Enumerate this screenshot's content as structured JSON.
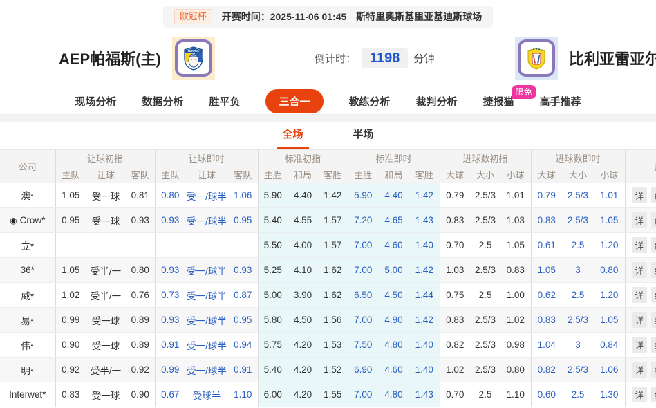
{
  "topbar": {
    "league_badge": "欧冠杯",
    "kickoff_label": "开赛时间：",
    "kickoff_time": "2025-11-06 01:45",
    "venue": "斯特里奥斯基里亚基迪斯球场"
  },
  "header": {
    "home_team": "AEP帕福斯(主)",
    "home_logo_text": "ΠΑΦΟΣ",
    "away_team": "比利亚雷亚尔",
    "countdown_label": "倒计时：",
    "countdown_value": "1198",
    "countdown_unit": "分钟"
  },
  "nav": {
    "tabs": [
      {
        "label": "现场分析",
        "active": false
      },
      {
        "label": "数据分析",
        "active": false
      },
      {
        "label": "胜平负",
        "active": false
      },
      {
        "label": "三合一",
        "active": true
      },
      {
        "label": "教练分析",
        "active": false
      },
      {
        "label": "裁判分析",
        "active": false
      },
      {
        "label": "捷报猫",
        "active": false,
        "badge": "限免"
      },
      {
        "label": "高手推荐",
        "active": false
      }
    ]
  },
  "subtabs": [
    {
      "label": "全场",
      "active": true
    },
    {
      "label": "半场",
      "active": false
    }
  ],
  "icons": {
    "bullseye": "◉"
  },
  "colors": {
    "accent_orange": "#e8430f",
    "odds_blue": "#2a5fc2",
    "cyan_bg": "#e9f7f8",
    "badge_pink": "#f135a0"
  },
  "table": {
    "col_company": "公司",
    "groups": [
      {
        "label": "让球初指",
        "cols": [
          "主队",
          "让球",
          "客队"
        ]
      },
      {
        "label": "让球即时",
        "cols": [
          "主队",
          "让球",
          "客队"
        ]
      },
      {
        "label": "标准初指",
        "cols": [
          "主胜",
          "和局",
          "客胜"
        ]
      },
      {
        "label": "标准即时",
        "cols": [
          "主胜",
          "和局",
          "客胜"
        ]
      },
      {
        "label": "进球数初指",
        "cols": [
          "大球",
          "大小",
          "小球"
        ]
      },
      {
        "label": "进球数即时",
        "cols": [
          "大球",
          "大小",
          "小球"
        ]
      }
    ],
    "last_group_label": "历史",
    "action_detail": "详",
    "action_stats": "统",
    "rows": [
      {
        "company": "澳*",
        "has_icon": false,
        "hi": [
          "1.05",
          "受一球",
          "0.81"
        ],
        "hl": [
          "0.80",
          "受一/球半",
          "1.06"
        ],
        "si": [
          "5.90",
          "4.40",
          "1.42"
        ],
        "sl": [
          "5.90",
          "4.40",
          "1.42"
        ],
        "gi": [
          "0.79",
          "2.5/3",
          "1.01"
        ],
        "gl": [
          "0.79",
          "2.5/3",
          "1.01"
        ]
      },
      {
        "company": "Crow*",
        "has_icon": true,
        "hi": [
          "0.95",
          "受一球",
          "0.93"
        ],
        "hl": [
          "0.93",
          "受一/球半",
          "0.95"
        ],
        "si": [
          "5.40",
          "4.55",
          "1.57"
        ],
        "sl": [
          "7.20",
          "4.65",
          "1.43"
        ],
        "gi": [
          "0.83",
          "2.5/3",
          "1.03"
        ],
        "gl": [
          "0.83",
          "2.5/3",
          "1.05"
        ]
      },
      {
        "company": "立*",
        "has_icon": false,
        "hi": [
          "",
          "",
          ""
        ],
        "hl": [
          "",
          "",
          ""
        ],
        "si": [
          "5.50",
          "4.00",
          "1.57"
        ],
        "sl": [
          "7.00",
          "4.60",
          "1.40"
        ],
        "gi": [
          "0.70",
          "2.5",
          "1.05"
        ],
        "gl": [
          "0.61",
          "2.5",
          "1.20"
        ]
      },
      {
        "company": "36*",
        "has_icon": false,
        "hi": [
          "1.05",
          "受半/一",
          "0.80"
        ],
        "hl": [
          "0.93",
          "受一/球半",
          "0.93"
        ],
        "si": [
          "5.25",
          "4.10",
          "1.62"
        ],
        "sl": [
          "7.00",
          "5.00",
          "1.42"
        ],
        "gi": [
          "1.03",
          "2.5/3",
          "0.83"
        ],
        "gl": [
          "1.05",
          "3",
          "0.80"
        ]
      },
      {
        "company": "威*",
        "has_icon": false,
        "hi": [
          "1.02",
          "受半/一",
          "0.76"
        ],
        "hl": [
          "0.73",
          "受一/球半",
          "0.87"
        ],
        "si": [
          "5.00",
          "3.90",
          "1.62"
        ],
        "sl": [
          "6.50",
          "4.50",
          "1.44"
        ],
        "gi": [
          "0.75",
          "2.5",
          "1.00"
        ],
        "gl": [
          "0.62",
          "2.5",
          "1.20"
        ]
      },
      {
        "company": "易*",
        "has_icon": false,
        "hi": [
          "0.99",
          "受一球",
          "0.89"
        ],
        "hl": [
          "0.93",
          "受一/球半",
          "0.95"
        ],
        "si": [
          "5.80",
          "4.50",
          "1.56"
        ],
        "sl": [
          "7.00",
          "4.90",
          "1.42"
        ],
        "gi": [
          "0.83",
          "2.5/3",
          "1.02"
        ],
        "gl": [
          "0.83",
          "2.5/3",
          "1.05"
        ]
      },
      {
        "company": "伟*",
        "has_icon": false,
        "hi": [
          "0.90",
          "受一球",
          "0.89"
        ],
        "hl": [
          "0.91",
          "受一/球半",
          "0.94"
        ],
        "si": [
          "5.75",
          "4.20",
          "1.53"
        ],
        "sl": [
          "7.50",
          "4.80",
          "1.40"
        ],
        "gi": [
          "0.82",
          "2.5/3",
          "0.98"
        ],
        "gl": [
          "1.04",
          "3",
          "0.84"
        ]
      },
      {
        "company": "明*",
        "has_icon": false,
        "hi": [
          "0.92",
          "受半/一",
          "0.92"
        ],
        "hl": [
          "0.99",
          "受一/球半",
          "0.91"
        ],
        "si": [
          "5.40",
          "4.20",
          "1.52"
        ],
        "sl": [
          "6.90",
          "4.60",
          "1.40"
        ],
        "gi": [
          "1.02",
          "2.5/3",
          "0.80"
        ],
        "gl": [
          "0.82",
          "2.5/3",
          "1.06"
        ]
      },
      {
        "company": "Interwet*",
        "has_icon": false,
        "hi": [
          "0.83",
          "受一球",
          "0.90"
        ],
        "hl": [
          "0.67",
          "受球半",
          "1.10"
        ],
        "si": [
          "6.00",
          "4.20",
          "1.55"
        ],
        "sl": [
          "7.00",
          "4.80",
          "1.43"
        ],
        "gi": [
          "0.70",
          "2.5",
          "1.10"
        ],
        "gl": [
          "0.60",
          "2.5",
          "1.30"
        ]
      }
    ]
  }
}
